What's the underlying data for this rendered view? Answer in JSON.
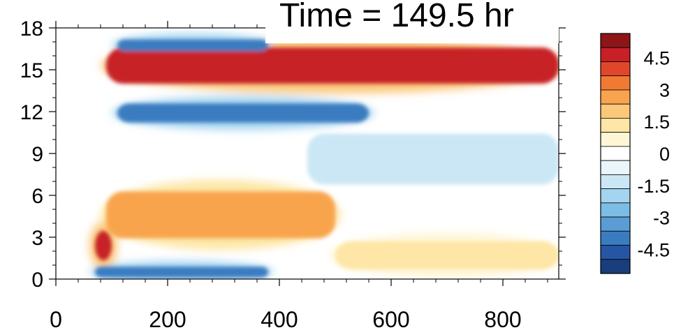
{
  "chart_data": {
    "type": "heatmap",
    "title": "Time = 149.5 hr",
    "xlabel": "",
    "ylabel": "",
    "xlim": [
      0,
      900
    ],
    "ylim": [
      0,
      18
    ],
    "xticks": [
      0,
      200,
      400,
      600,
      800
    ],
    "yticks": [
      0,
      3,
      6,
      9,
      12,
      15,
      18
    ],
    "colorbar": {
      "levels": [
        -5.25,
        -4.5,
        -3.75,
        -3,
        -2.25,
        -1.5,
        -0.75,
        0,
        0.75,
        1.5,
        2.25,
        3,
        3.75,
        4.5,
        5.25
      ],
      "tick_labels": [
        "4.5",
        "3",
        "1.5",
        "0",
        "-1.5",
        "-3",
        "-4.5"
      ],
      "tick_values": [
        4.5,
        3,
        1.5,
        0,
        -1.5,
        -3,
        -4.5
      ],
      "colors": [
        "#1a3d7c",
        "#2456a4",
        "#3a7cc0",
        "#5a9dd5",
        "#7cbde6",
        "#a4d4f0",
        "#cbe7f6",
        "#ebf6fb",
        "#ffffff",
        "#fff6d6",
        "#fde6a6",
        "#fbc87a",
        "#f8a44e",
        "#f17a32",
        "#e0472a",
        "#c72026",
        "#8e1518"
      ]
    },
    "features": [
      {
        "name": "upper positive band",
        "x": [
          90,
          900
        ],
        "y": [
          13.6,
          17.0
        ],
        "value": 5.0
      },
      {
        "name": "negative band below",
        "x": [
          110,
          560
        ],
        "y": [
          11.0,
          12.8
        ],
        "value": -5.0
      },
      {
        "name": "top negative strip",
        "x": [
          110,
          380
        ],
        "y": [
          16.2,
          17.3
        ],
        "value": -5.0
      },
      {
        "name": "broad negative region",
        "x": [
          450,
          900
        ],
        "y": [
          6.2,
          11.0
        ],
        "value": -1.5
      },
      {
        "name": "lower positive region",
        "x": [
          90,
          500
        ],
        "y": [
          2.4,
          6.8
        ],
        "value": 2.5
      },
      {
        "name": "near-surface positive",
        "x": [
          500,
          900
        ],
        "y": [
          0.4,
          3.0
        ],
        "value": 1.5
      },
      {
        "name": "near-surface negative",
        "x": [
          70,
          380
        ],
        "y": [
          0.0,
          1.0
        ],
        "value": -5.0
      },
      {
        "name": "strong positive spot",
        "x": [
          70,
          100
        ],
        "y": [
          1.0,
          3.8
        ],
        "value": 5.0
      }
    ]
  }
}
